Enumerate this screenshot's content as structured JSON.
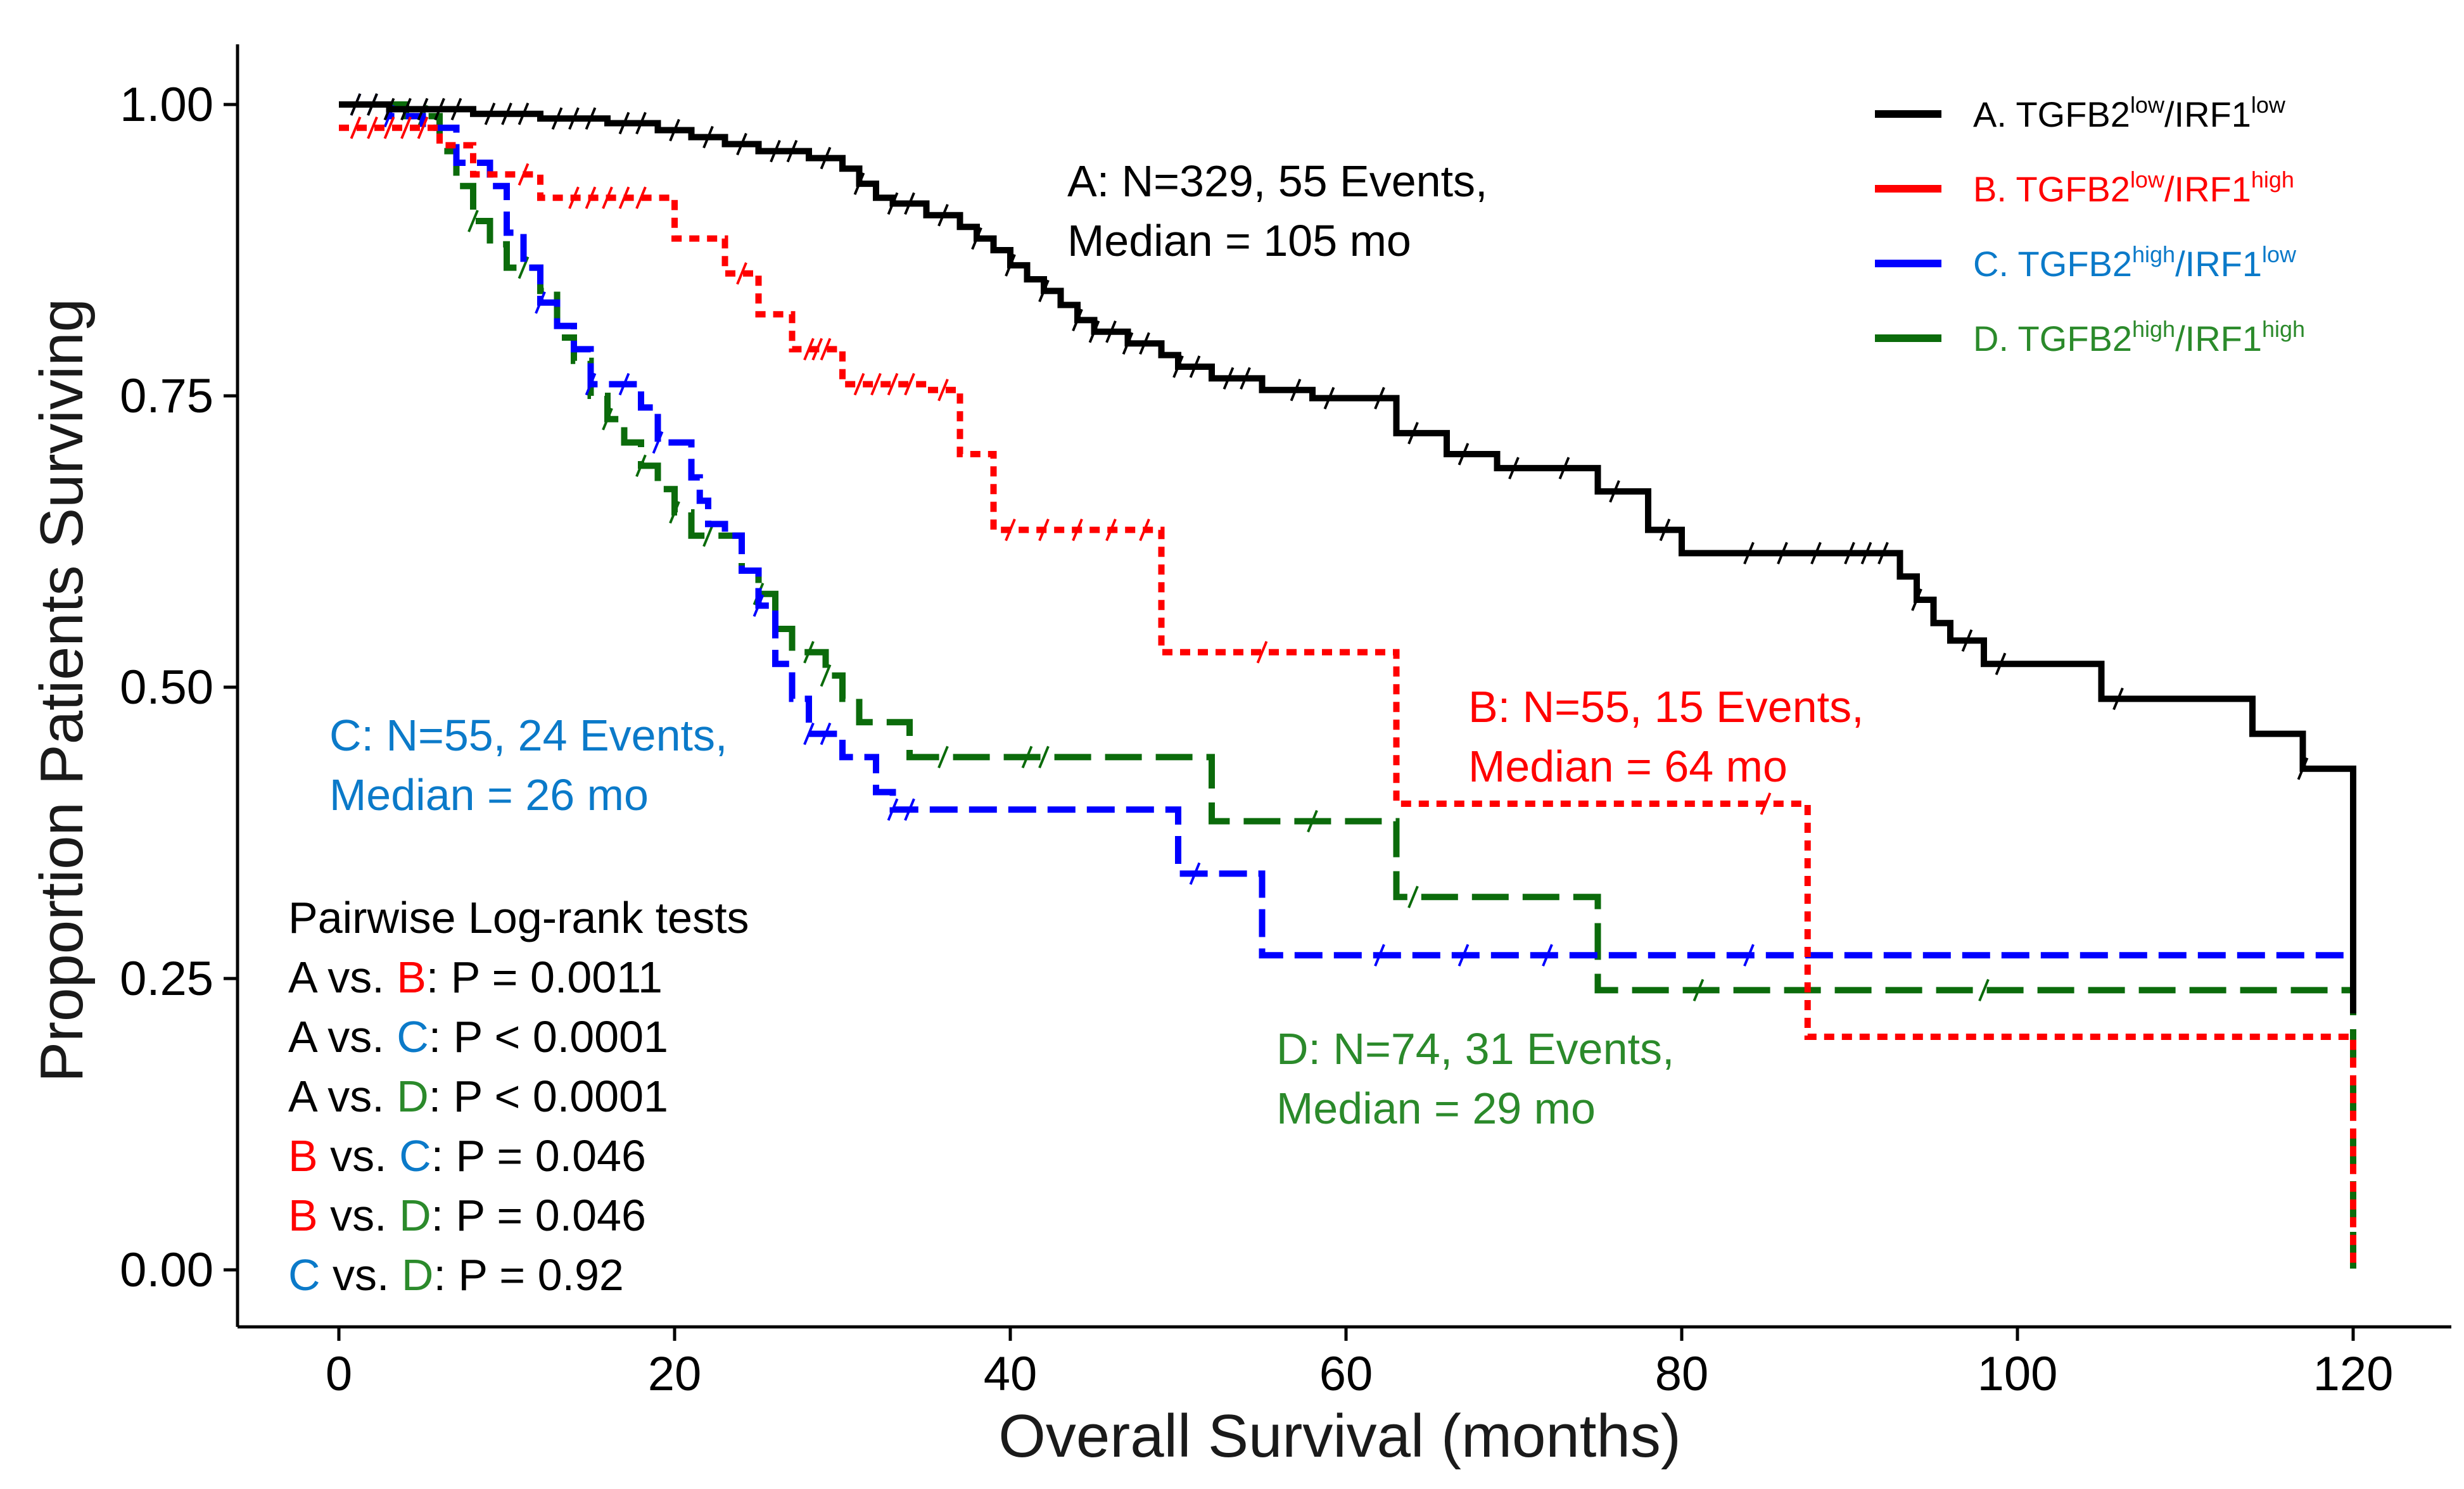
{
  "chart_data": {
    "type": "line",
    "subtype": "kaplan-meier",
    "title": "",
    "xlabel": "Overall Survival (months)",
    "ylabel": "Proportion Patients Surviving",
    "xlim": [
      -7,
      126
    ],
    "ylim": [
      -0.05,
      1.045
    ],
    "x_ticks": [
      0,
      20,
      40,
      60,
      80,
      100,
      120
    ],
    "x_tick_labels": [
      "0",
      "20",
      "40",
      "60",
      "80",
      "100",
      "120"
    ],
    "y_ticks": [
      0,
      0.25,
      0.5,
      0.75,
      1.0
    ],
    "y_tick_labels": [
      "0.00",
      "0.25",
      "0.50",
      "0.75",
      "1.00"
    ],
    "legend_position": "top-right",
    "series": [
      {
        "key": "A",
        "legend": {
          "prefix": "A. TGFB2",
          "sup1": "low",
          "mid": "/IRF1",
          "sup2": "low"
        },
        "color": "#000000",
        "dash": "solid",
        "steps": [
          [
            0,
            1.0
          ],
          [
            3,
            0.996
          ],
          [
            8,
            0.992
          ],
          [
            12,
            0.988
          ],
          [
            16,
            0.984
          ],
          [
            19,
            0.978
          ],
          [
            21,
            0.972
          ],
          [
            23,
            0.966
          ],
          [
            25,
            0.96
          ],
          [
            28,
            0.954
          ],
          [
            30,
            0.945
          ],
          [
            31,
            0.932
          ],
          [
            32,
            0.92
          ],
          [
            33,
            0.915
          ],
          [
            35,
            0.905
          ],
          [
            37,
            0.895
          ],
          [
            38,
            0.885
          ],
          [
            39,
            0.875
          ],
          [
            40,
            0.862
          ],
          [
            41,
            0.85
          ],
          [
            42,
            0.84
          ],
          [
            43,
            0.828
          ],
          [
            44,
            0.815
          ],
          [
            45,
            0.805
          ],
          [
            47,
            0.795
          ],
          [
            49,
            0.785
          ],
          [
            50,
            0.775
          ],
          [
            52,
            0.765
          ],
          [
            55,
            0.755
          ],
          [
            58,
            0.748
          ],
          [
            63,
            0.718
          ],
          [
            66,
            0.7
          ],
          [
            69,
            0.688
          ],
          [
            75,
            0.668
          ],
          [
            78,
            0.635
          ],
          [
            80,
            0.615
          ],
          [
            93,
            0.595
          ],
          [
            94,
            0.575
          ],
          [
            95,
            0.555
          ],
          [
            96,
            0.54
          ],
          [
            98,
            0.52
          ],
          [
            105,
            0.49
          ],
          [
            114,
            0.46
          ],
          [
            117,
            0.43
          ],
          [
            120,
            0.25
          ],
          [
            120,
            0.22
          ]
        ],
        "censor": [
          1,
          2,
          3,
          4,
          5,
          6,
          7,
          9,
          10,
          11,
          13,
          14,
          15,
          17,
          18,
          20,
          22,
          24,
          26,
          27,
          29,
          31,
          33,
          34,
          36,
          38,
          40,
          42,
          44,
          45,
          46,
          47,
          48,
          50,
          51,
          53,
          54,
          57,
          59,
          62,
          64,
          67,
          70,
          73,
          76,
          79,
          84,
          86,
          88,
          90,
          91,
          92,
          94,
          97,
          99,
          106,
          117
        ],
        "annotation": [
          "A: N=329, 55 Events,",
          "Median = 105 mo"
        ]
      },
      {
        "key": "B",
        "legend": {
          "prefix": "B. TGFB2",
          "sup1": "low",
          "mid": "/IRF1",
          "sup2": "high"
        },
        "color": "#ff0000",
        "dash": "dotted",
        "steps": [
          [
            0,
            0.98
          ],
          [
            6,
            0.965
          ],
          [
            8,
            0.94
          ],
          [
            12,
            0.92
          ],
          [
            20,
            0.885
          ],
          [
            23,
            0.855
          ],
          [
            25,
            0.82
          ],
          [
            27,
            0.79
          ],
          [
            30,
            0.76
          ],
          [
            35,
            0.755
          ],
          [
            37,
            0.7
          ],
          [
            39,
            0.635
          ],
          [
            49,
            0.53
          ],
          [
            63,
            0.4
          ],
          [
            87.5,
            0.2
          ],
          [
            120,
            0.0
          ]
        ],
        "censor": [
          1,
          2,
          3,
          4,
          5,
          11,
          14,
          15,
          16,
          17,
          18,
          24,
          28,
          28.5,
          29,
          31,
          32,
          33,
          34,
          36,
          40,
          42,
          44,
          46,
          48,
          55,
          85
        ],
        "annotation": [
          "B: N=55, 15 Events,",
          "Median = 64 mo"
        ]
      },
      {
        "key": "C",
        "legend": {
          "prefix": "C. TGFB2",
          "sup1": "high",
          "mid": "/IRF1",
          "sup2": "low"
        },
        "color": "#0000ff",
        "dash": "dashed",
        "steps": [
          [
            0,
            1.0
          ],
          [
            3,
            0.99
          ],
          [
            5,
            0.98
          ],
          [
            7,
            0.95
          ],
          [
            9,
            0.93
          ],
          [
            10,
            0.89
          ],
          [
            11,
            0.86
          ],
          [
            12,
            0.83
          ],
          [
            13,
            0.81
          ],
          [
            14,
            0.79
          ],
          [
            15,
            0.76
          ],
          [
            18,
            0.74
          ],
          [
            19,
            0.71
          ],
          [
            21,
            0.68
          ],
          [
            21.5,
            0.66
          ],
          [
            22,
            0.64
          ],
          [
            23,
            0.63
          ],
          [
            24,
            0.6
          ],
          [
            25,
            0.57
          ],
          [
            26,
            0.52
          ],
          [
            27,
            0.49
          ],
          [
            28,
            0.46
          ],
          [
            30,
            0.44
          ],
          [
            32,
            0.41
          ],
          [
            33,
            0.395
          ],
          [
            50,
            0.34
          ],
          [
            55,
            0.27
          ],
          [
            120,
            0.27
          ]
        ],
        "censor": [
          1,
          2,
          3,
          12,
          15,
          17,
          19,
          25,
          28,
          29,
          33,
          34,
          51,
          62,
          67,
          72,
          84
        ],
        "annotation": [
          "C: N=55, 24 Events,",
          "Median = 26 mo"
        ]
      },
      {
        "key": "D",
        "legend": {
          "prefix": "D. TGFB2",
          "sup1": "high",
          "mid": "/IRF1",
          "sup2": "high"
        },
        "color": "#0b6b0b",
        "dash": "longdash",
        "steps": [
          [
            0,
            1.0
          ],
          [
            4,
            0.99
          ],
          [
            6,
            0.96
          ],
          [
            7,
            0.93
          ],
          [
            8,
            0.9
          ],
          [
            9,
            0.88
          ],
          [
            10,
            0.86
          ],
          [
            12,
            0.84
          ],
          [
            13,
            0.8
          ],
          [
            14,
            0.78
          ],
          [
            15,
            0.75
          ],
          [
            16,
            0.73
          ],
          [
            17,
            0.71
          ],
          [
            18,
            0.69
          ],
          [
            19,
            0.67
          ],
          [
            20,
            0.65
          ],
          [
            21,
            0.63
          ],
          [
            24,
            0.6
          ],
          [
            25,
            0.58
          ],
          [
            26,
            0.55
          ],
          [
            27,
            0.53
          ],
          [
            29,
            0.51
          ],
          [
            30,
            0.49
          ],
          [
            31,
            0.47
          ],
          [
            34,
            0.44
          ],
          [
            52,
            0.385
          ],
          [
            63,
            0.32
          ],
          [
            75,
            0.24
          ],
          [
            120,
            0.0
          ]
        ],
        "censor": [
          2,
          5,
          8,
          11,
          16,
          18,
          20,
          22,
          25,
          28,
          29,
          36,
          41,
          42,
          58,
          64,
          81,
          98
        ],
        "annotation": [
          "D: N=74, 31 Events,",
          "Median = 29 mo"
        ]
      }
    ],
    "pairwise_tests": {
      "title": "Pairwise Log-rank tests",
      "rows": [
        {
          "g1": "A",
          "g2": "B",
          "p": ": P = 0.0011"
        },
        {
          "g1": "A",
          "g2": "C",
          "p": ": P < 0.0001"
        },
        {
          "g1": "A",
          "g2": "D",
          "p": ": P < 0.0001"
        },
        {
          "g1": "B",
          "g2": "C",
          "p": ": P = 0.046"
        },
        {
          "g1": "B",
          "g2": "D",
          "p": ": P = 0.046"
        },
        {
          "g1": "C",
          "g2": "D",
          "p": ": P = 0.92"
        }
      ],
      "vs_text": " vs. "
    },
    "text_colors": {
      "A": "#000000",
      "B": "#ff0000",
      "C": "#0b7ac9",
      "D": "#2b8a2b"
    }
  }
}
